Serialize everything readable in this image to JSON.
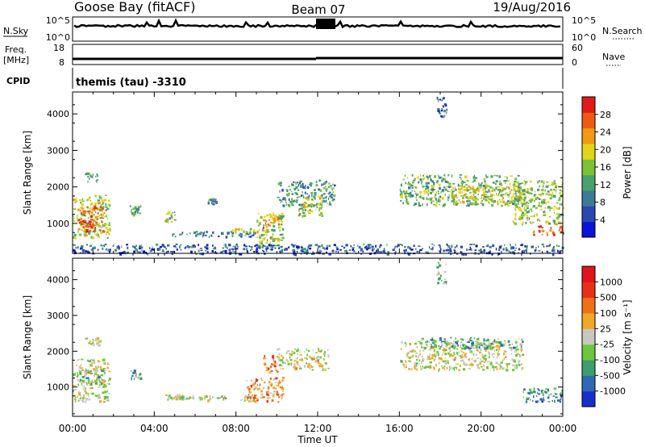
{
  "header": {
    "station": "Goose Bay (fitACF)",
    "beam": "Beam 07",
    "date": "19/Aug/2016"
  },
  "panels": {
    "nsky_label": "N.Sky",
    "nsky_ticks": [
      "10^5",
      "10^0"
    ],
    "nsearch_label": "N.Search",
    "nsearch_ticks": [
      "10^5",
      "10^0"
    ],
    "freq_label_line1": "Freq.",
    "freq_label_line2": "[MHz]",
    "freq_ticks": [
      "18",
      "8"
    ],
    "nave_label": "Nave",
    "nave_ticks": [
      "60",
      "0"
    ],
    "cpid_label": "CPID",
    "cpid_value": "themis (tau) -3310"
  },
  "chart_data": [
    {
      "type": "heatmap",
      "name": "power",
      "ylabel": "Slant Range [km]",
      "yticks": [
        "4000",
        "3000",
        "2000",
        "1000"
      ],
      "ylim": [
        180,
        4600
      ],
      "xlim": [
        0,
        24
      ],
      "colorbar_label": "Power [dB]",
      "colorbar_ticks": [
        "28",
        "24",
        "20",
        "16",
        "12",
        "8",
        "4"
      ],
      "colorbar_colors": [
        "#0a14d8",
        "#2c46b4",
        "#3c7a96",
        "#4aa06e",
        "#7cc236",
        "#e2d418",
        "#f09a14",
        "#ee5a14",
        "#e01a18"
      ],
      "regions": [
        {
          "t": [
            0.0,
            1.8
          ],
          "r": [
            600,
            1800
          ],
          "v": 0.55
        },
        {
          "t": [
            0.3,
            1.5
          ],
          "r": [
            780,
            1500
          ],
          "v": 0.8
        },
        {
          "t": [
            0.6,
            1.2
          ],
          "r": [
            2150,
            2400
          ],
          "v": 0.3
        },
        {
          "t": [
            0.2,
            1.0
          ],
          "r": [
            900,
            1150
          ],
          "v": 0.9
        },
        {
          "t": [
            2.8,
            3.3
          ],
          "r": [
            1250,
            1500
          ],
          "v": 0.4
        },
        {
          "t": [
            4.5,
            5.0
          ],
          "r": [
            1050,
            1350
          ],
          "v": 0.5
        },
        {
          "t": [
            6.6,
            7.0
          ],
          "r": [
            1550,
            1700
          ],
          "v": 0.3
        },
        {
          "t": [
            4.8,
            9.5
          ],
          "r": [
            650,
            800
          ],
          "v": 0.3
        },
        {
          "t": [
            7.8,
            9.5
          ],
          "r": [
            780,
            880
          ],
          "v": 0.6
        },
        {
          "t": [
            9.0,
            10.3
          ],
          "r": [
            400,
            1300
          ],
          "v": 0.5
        },
        {
          "t": [
            9.3,
            10.1
          ],
          "r": [
            900,
            1200
          ],
          "v": 0.75
        },
        {
          "t": [
            10.0,
            12.8
          ],
          "r": [
            1500,
            2200
          ],
          "v": 0.35
        },
        {
          "t": [
            11.0,
            12.2
          ],
          "r": [
            1200,
            1800
          ],
          "v": 0.55
        },
        {
          "t": [
            16.0,
            22.0
          ],
          "r": [
            1500,
            2350
          ],
          "v": 0.45
        },
        {
          "t": [
            18.5,
            22.0
          ],
          "r": [
            1600,
            2050
          ],
          "v": 0.6
        },
        {
          "t": [
            21.5,
            24.0
          ],
          "r": [
            1000,
            2200
          ],
          "v": 0.5
        },
        {
          "t": [
            22.5,
            24.0
          ],
          "r": [
            700,
            950
          ],
          "v": 0.9
        },
        {
          "t": [
            17.8,
            18.3
          ],
          "r": [
            3900,
            4500
          ],
          "v": 0.2
        },
        {
          "t": [
            0.0,
            24.0
          ],
          "r": [
            180,
            450
          ],
          "v": 0.2
        }
      ]
    },
    {
      "type": "heatmap",
      "name": "velocity",
      "ylabel": "Slant Range [km]",
      "yticks": [
        "4000",
        "3000",
        "2000",
        "1000"
      ],
      "ylim": [
        180,
        4600
      ],
      "xlim": [
        0,
        24
      ],
      "xticks": [
        "00:00",
        "04:00",
        "08:00",
        "12:00",
        "16:00",
        "20:00",
        "00:00"
      ],
      "xlabel": "Time UT",
      "colorbar_label": "Velocity [m s⁻¹]",
      "colorbar_ticks": [
        "1000",
        "500",
        "100",
        "25",
        "-25",
        "-100",
        "-500",
        "-1000"
      ],
      "colorbar_colors": [
        "#1a2ec8",
        "#2e6ab4",
        "#3c9e6e",
        "#6cc83a",
        "#c8c8be",
        "#f0a828",
        "#f07018",
        "#e83018",
        "#e0141c"
      ],
      "regions": [
        {
          "t": [
            0.0,
            1.8
          ],
          "r": [
            600,
            1800
          ],
          "v": 0.5
        },
        {
          "t": [
            0.3,
            1.5
          ],
          "r": [
            1100,
            1500
          ],
          "v": 0.35
        },
        {
          "t": [
            0.6,
            1.4
          ],
          "r": [
            2200,
            2400
          ],
          "v": 0.5
        },
        {
          "t": [
            2.8,
            3.3
          ],
          "r": [
            1250,
            1500
          ],
          "v": 0.3
        },
        {
          "t": [
            4.5,
            9.0
          ],
          "r": [
            650,
            800
          ],
          "v": 0.5
        },
        {
          "t": [
            4.5,
            7.5
          ],
          "r": [
            700,
            760
          ],
          "v": 0.35
        },
        {
          "t": [
            8.5,
            10.3
          ],
          "r": [
            600,
            1300
          ],
          "v": 0.65
        },
        {
          "t": [
            9.3,
            10.0
          ],
          "r": [
            1400,
            1900
          ],
          "v": 0.7
        },
        {
          "t": [
            10.0,
            12.5
          ],
          "r": [
            1500,
            2100
          ],
          "v": 0.5
        },
        {
          "t": [
            16.0,
            22.0
          ],
          "r": [
            1500,
            2300
          ],
          "v": 0.5
        },
        {
          "t": [
            17.0,
            22.0
          ],
          "r": [
            2100,
            2400
          ],
          "v": 0.3
        },
        {
          "t": [
            22.0,
            24.0
          ],
          "r": [
            600,
            1000
          ],
          "v": 0.25
        },
        {
          "t": [
            17.8,
            18.3
          ],
          "r": [
            3900,
            4500
          ],
          "v": 0.4
        }
      ]
    }
  ]
}
